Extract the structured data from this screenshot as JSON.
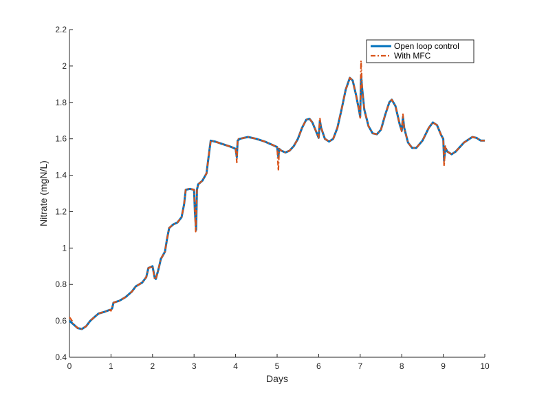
{
  "chart_data": {
    "type": "line",
    "xlabel": "Days",
    "ylabel": "Nitrate (mgN/L)",
    "xlim": [
      0,
      10
    ],
    "ylim": [
      0.4,
      2.2
    ],
    "xticks": [
      "0",
      "1",
      "2",
      "3",
      "4",
      "5",
      "6",
      "7",
      "8",
      "9",
      "10"
    ],
    "yticks": [
      "0.4",
      "0.6",
      "0.8",
      "1",
      "1.2",
      "1.4",
      "1.6",
      "1.8",
      "2",
      "2.2"
    ],
    "grid": false,
    "legend_position": "top-right",
    "legend": [
      "Open loop control",
      "With MFC"
    ],
    "series": [
      {
        "name": "Open loop control",
        "color": "#0072BD",
        "style": "solid",
        "points": [
          [
            0,
            0.6
          ],
          [
            0.1,
            0.58
          ],
          [
            0.2,
            0.56
          ],
          [
            0.3,
            0.555
          ],
          [
            0.4,
            0.57
          ],
          [
            0.5,
            0.6
          ],
          [
            0.6,
            0.62
          ],
          [
            0.7,
            0.64
          ],
          [
            0.85,
            0.65
          ],
          [
            0.97,
            0.66
          ],
          [
            1.0,
            0.66
          ],
          [
            1.03,
            0.67
          ],
          [
            1.06,
            0.7
          ],
          [
            1.2,
            0.71
          ],
          [
            1.35,
            0.73
          ],
          [
            1.5,
            0.76
          ],
          [
            1.6,
            0.79
          ],
          [
            1.75,
            0.81
          ],
          [
            1.85,
            0.84
          ],
          [
            1.9,
            0.89
          ],
          [
            2.0,
            0.9
          ],
          [
            2.05,
            0.84
          ],
          [
            2.08,
            0.83
          ],
          [
            2.15,
            0.89
          ],
          [
            2.2,
            0.94
          ],
          [
            2.3,
            0.98
          ],
          [
            2.35,
            1.05
          ],
          [
            2.4,
            1.11
          ],
          [
            2.5,
            1.13
          ],
          [
            2.6,
            1.14
          ],
          [
            2.7,
            1.17
          ],
          [
            2.76,
            1.24
          ],
          [
            2.8,
            1.32
          ],
          [
            2.9,
            1.325
          ],
          [
            3.0,
            1.32
          ],
          [
            3.02,
            1.2
          ],
          [
            3.05,
            1.1
          ],
          [
            3.07,
            1.32
          ],
          [
            3.1,
            1.35
          ],
          [
            3.2,
            1.37
          ],
          [
            3.3,
            1.41
          ],
          [
            3.35,
            1.5
          ],
          [
            3.4,
            1.59
          ],
          [
            3.5,
            1.585
          ],
          [
            3.7,
            1.57
          ],
          [
            3.9,
            1.555
          ],
          [
            4.0,
            1.545
          ],
          [
            4.03,
            1.5
          ],
          [
            4.05,
            1.59
          ],
          [
            4.1,
            1.6
          ],
          [
            4.3,
            1.61
          ],
          [
            4.5,
            1.6
          ],
          [
            4.7,
            1.585
          ],
          [
            4.9,
            1.565
          ],
          [
            5.0,
            1.555
          ],
          [
            5.03,
            1.5
          ],
          [
            5.05,
            1.545
          ],
          [
            5.1,
            1.535
          ],
          [
            5.2,
            1.525
          ],
          [
            5.3,
            1.535
          ],
          [
            5.4,
            1.56
          ],
          [
            5.5,
            1.6
          ],
          [
            5.6,
            1.66
          ],
          [
            5.7,
            1.705
          ],
          [
            5.78,
            1.71
          ],
          [
            5.85,
            1.69
          ],
          [
            5.92,
            1.65
          ],
          [
            6.0,
            1.605
          ],
          [
            6.03,
            1.7
          ],
          [
            6.06,
            1.66
          ],
          [
            6.15,
            1.6
          ],
          [
            6.25,
            1.585
          ],
          [
            6.35,
            1.6
          ],
          [
            6.45,
            1.66
          ],
          [
            6.55,
            1.76
          ],
          [
            6.65,
            1.87
          ],
          [
            6.75,
            1.935
          ],
          [
            6.82,
            1.92
          ],
          [
            6.9,
            1.84
          ],
          [
            6.97,
            1.76
          ],
          [
            7.0,
            1.72
          ],
          [
            7.02,
            1.95
          ],
          [
            7.05,
            1.87
          ],
          [
            7.1,
            1.76
          ],
          [
            7.2,
            1.67
          ],
          [
            7.3,
            1.63
          ],
          [
            7.4,
            1.625
          ],
          [
            7.5,
            1.65
          ],
          [
            7.6,
            1.73
          ],
          [
            7.7,
            1.8
          ],
          [
            7.76,
            1.815
          ],
          [
            7.85,
            1.78
          ],
          [
            7.95,
            1.68
          ],
          [
            8.0,
            1.645
          ],
          [
            8.03,
            1.72
          ],
          [
            8.06,
            1.66
          ],
          [
            8.15,
            1.58
          ],
          [
            8.25,
            1.55
          ],
          [
            8.35,
            1.55
          ],
          [
            8.5,
            1.59
          ],
          [
            8.65,
            1.66
          ],
          [
            8.75,
            1.69
          ],
          [
            8.85,
            1.675
          ],
          [
            8.95,
            1.62
          ],
          [
            9.0,
            1.6
          ],
          [
            9.02,
            1.48
          ],
          [
            9.05,
            1.55
          ],
          [
            9.1,
            1.53
          ],
          [
            9.2,
            1.515
          ],
          [
            9.3,
            1.53
          ],
          [
            9.5,
            1.58
          ],
          [
            9.7,
            1.61
          ],
          [
            9.8,
            1.605
          ],
          [
            9.9,
            1.59
          ],
          [
            10.0,
            1.59
          ]
        ]
      },
      {
        "name": "With MFC",
        "color": "#D95319",
        "style": "dashed",
        "points": [
          [
            0,
            0.62
          ],
          [
            0.05,
            0.605
          ],
          [
            0.1,
            0.58
          ],
          [
            0.2,
            0.56
          ],
          [
            0.3,
            0.555
          ],
          [
            0.4,
            0.57
          ],
          [
            0.5,
            0.6
          ],
          [
            0.6,
            0.62
          ],
          [
            0.7,
            0.64
          ],
          [
            0.85,
            0.65
          ],
          [
            0.97,
            0.66
          ],
          [
            1.0,
            0.655
          ],
          [
            1.03,
            0.68
          ],
          [
            1.06,
            0.7
          ],
          [
            1.2,
            0.71
          ],
          [
            1.35,
            0.73
          ],
          [
            1.5,
            0.76
          ],
          [
            1.6,
            0.79
          ],
          [
            1.75,
            0.81
          ],
          [
            1.85,
            0.84
          ],
          [
            1.9,
            0.89
          ],
          [
            2.0,
            0.9
          ],
          [
            2.05,
            0.83
          ],
          [
            2.08,
            0.83
          ],
          [
            2.15,
            0.89
          ],
          [
            2.2,
            0.94
          ],
          [
            2.3,
            0.98
          ],
          [
            2.35,
            1.05
          ],
          [
            2.4,
            1.11
          ],
          [
            2.5,
            1.13
          ],
          [
            2.6,
            1.14
          ],
          [
            2.7,
            1.17
          ],
          [
            2.76,
            1.24
          ],
          [
            2.8,
            1.325
          ],
          [
            2.9,
            1.325
          ],
          [
            3.0,
            1.32
          ],
          [
            3.02,
            1.2
          ],
          [
            3.04,
            1.09
          ],
          [
            3.07,
            1.32
          ],
          [
            3.1,
            1.35
          ],
          [
            3.2,
            1.37
          ],
          [
            3.3,
            1.41
          ],
          [
            3.35,
            1.5
          ],
          [
            3.4,
            1.59
          ],
          [
            3.5,
            1.585
          ],
          [
            3.7,
            1.57
          ],
          [
            3.9,
            1.555
          ],
          [
            4.0,
            1.545
          ],
          [
            4.03,
            1.47
          ],
          [
            4.05,
            1.6
          ],
          [
            4.1,
            1.6
          ],
          [
            4.3,
            1.61
          ],
          [
            4.5,
            1.6
          ],
          [
            4.7,
            1.585
          ],
          [
            4.9,
            1.565
          ],
          [
            5.0,
            1.555
          ],
          [
            5.03,
            1.425
          ],
          [
            5.05,
            1.545
          ],
          [
            5.1,
            1.535
          ],
          [
            5.2,
            1.525
          ],
          [
            5.3,
            1.535
          ],
          [
            5.4,
            1.56
          ],
          [
            5.5,
            1.6
          ],
          [
            5.6,
            1.66
          ],
          [
            5.7,
            1.705
          ],
          [
            5.78,
            1.71
          ],
          [
            5.85,
            1.69
          ],
          [
            5.92,
            1.65
          ],
          [
            6.0,
            1.605
          ],
          [
            6.03,
            1.715
          ],
          [
            6.06,
            1.66
          ],
          [
            6.15,
            1.6
          ],
          [
            6.25,
            1.585
          ],
          [
            6.35,
            1.6
          ],
          [
            6.45,
            1.66
          ],
          [
            6.55,
            1.76
          ],
          [
            6.65,
            1.87
          ],
          [
            6.75,
            1.935
          ],
          [
            6.82,
            1.92
          ],
          [
            6.9,
            1.84
          ],
          [
            6.97,
            1.76
          ],
          [
            7.0,
            1.715
          ],
          [
            7.02,
            2.03
          ],
          [
            7.05,
            1.87
          ],
          [
            7.1,
            1.76
          ],
          [
            7.2,
            1.67
          ],
          [
            7.3,
            1.63
          ],
          [
            7.4,
            1.625
          ],
          [
            7.5,
            1.65
          ],
          [
            7.6,
            1.73
          ],
          [
            7.7,
            1.8
          ],
          [
            7.76,
            1.815
          ],
          [
            7.85,
            1.78
          ],
          [
            7.95,
            1.68
          ],
          [
            8.0,
            1.64
          ],
          [
            8.03,
            1.735
          ],
          [
            8.06,
            1.66
          ],
          [
            8.15,
            1.58
          ],
          [
            8.25,
            1.55
          ],
          [
            8.35,
            1.55
          ],
          [
            8.5,
            1.59
          ],
          [
            8.65,
            1.66
          ],
          [
            8.75,
            1.69
          ],
          [
            8.85,
            1.675
          ],
          [
            8.95,
            1.62
          ],
          [
            9.0,
            1.6
          ],
          [
            9.02,
            1.45
          ],
          [
            9.05,
            1.56
          ],
          [
            9.1,
            1.53
          ],
          [
            9.2,
            1.515
          ],
          [
            9.3,
            1.53
          ],
          [
            9.5,
            1.58
          ],
          [
            9.7,
            1.61
          ],
          [
            9.8,
            1.605
          ],
          [
            9.9,
            1.59
          ],
          [
            10.0,
            1.59
          ]
        ]
      }
    ]
  }
}
